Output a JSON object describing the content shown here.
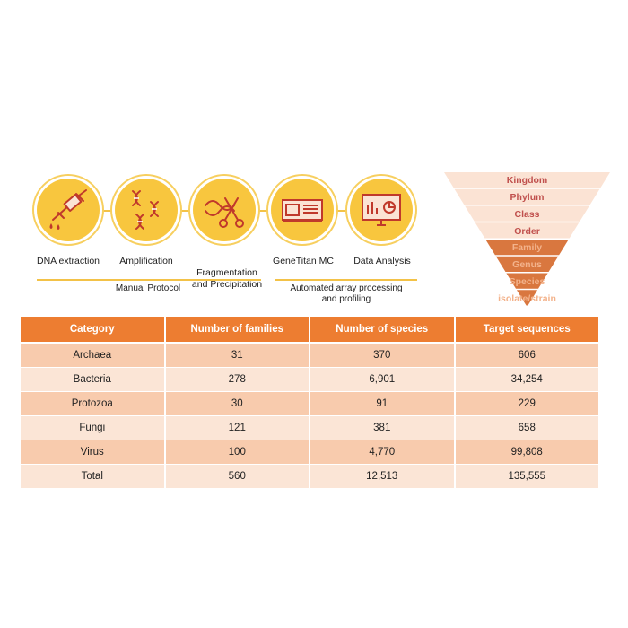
{
  "workflow": {
    "steps": [
      {
        "label": "DNA extraction",
        "icon": "pipette-icon"
      },
      {
        "label": "Amplification",
        "icon": "dna-strands-icon"
      },
      {
        "label": "Fragmentation\nand Precipitation",
        "icon": "dna-scissors-icon"
      },
      {
        "label": "GeneTitan MC",
        "icon": "instrument-icon"
      },
      {
        "label": "Data Analysis",
        "icon": "monitor-chart-icon"
      }
    ],
    "manual_label": "Manual Protocol",
    "automated_label": "Automated array processing\nand profiling"
  },
  "taxonomy": {
    "ranks": [
      "Kingdom",
      "Phylum",
      "Class",
      "Order",
      "Family",
      "Genus",
      "Species",
      "isolate/strain"
    ],
    "colors": {
      "light_band": "#fbe3d4",
      "dark_band": "#d9773f",
      "light_text": "#c0504d",
      "dark_text": "#f3b38c"
    }
  },
  "table": {
    "headers": [
      "Category",
      "Number of families",
      "Number of species",
      "Target sequences"
    ],
    "rows": [
      [
        "Archaea",
        "31",
        "370",
        "606"
      ],
      [
        "Bacteria",
        "278",
        "6,901",
        "34,254"
      ],
      [
        "Protozoa",
        "30",
        "91",
        "229"
      ],
      [
        "Fungi",
        "121",
        "381",
        "658"
      ],
      [
        "Virus",
        "100",
        "4,770",
        "99,808"
      ],
      [
        "Total",
        "560",
        "12,513",
        "135,555"
      ]
    ],
    "colors": {
      "header": "#ed7d31",
      "row_odd": "#f8cbad",
      "row_even": "#fbe5d6"
    }
  }
}
